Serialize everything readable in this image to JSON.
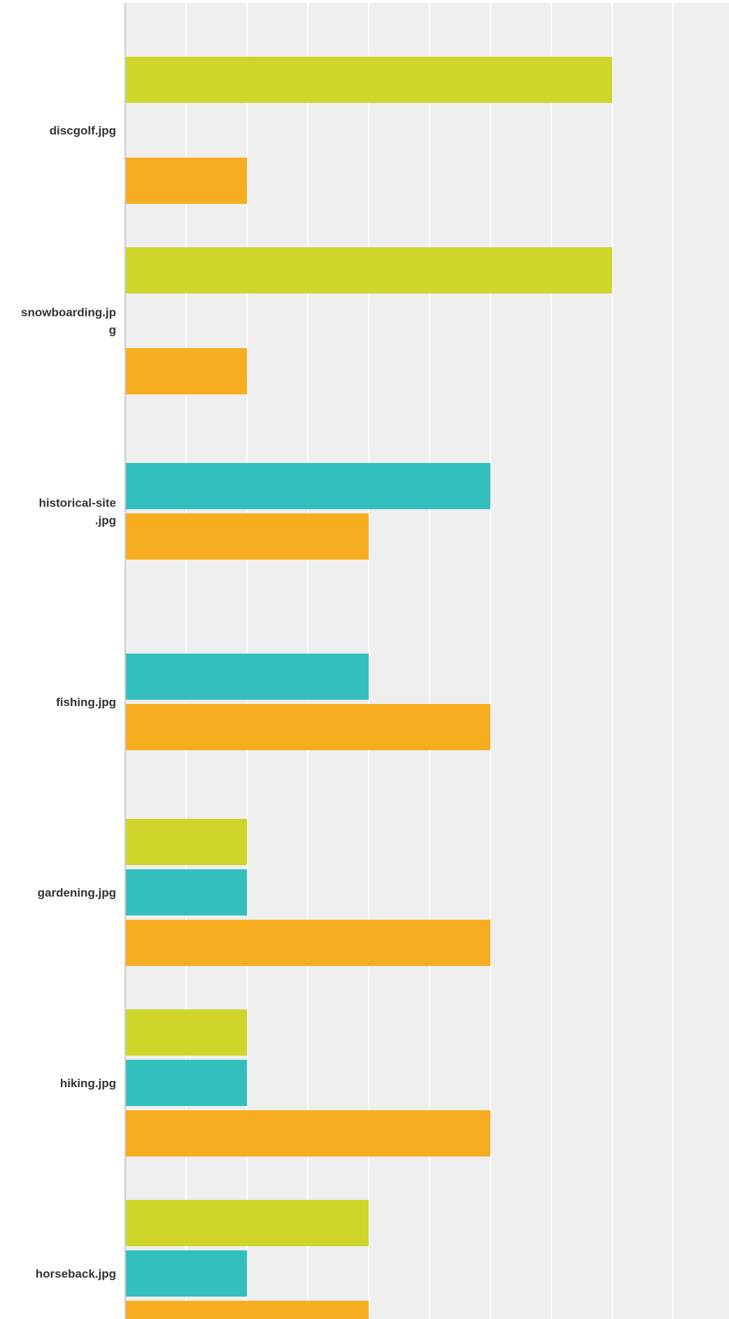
{
  "chart_data": {
    "type": "bar",
    "orientation": "horizontal",
    "grid": true,
    "xlim": [
      0,
      5
    ],
    "categories": [
      {
        "label_lines": [
          "discgolf.jpg"
        ]
      },
      {
        "label_lines": [
          "snowboarding.jp",
          "g"
        ]
      },
      {
        "label_lines": [
          "historical-site",
          ".jpg"
        ]
      },
      {
        "label_lines": [
          "fishing.jpg"
        ]
      },
      {
        "label_lines": [
          "gardening.jpg"
        ]
      },
      {
        "label_lines": [
          "hiking.jpg"
        ]
      },
      {
        "label_lines": [
          "horseback.jpg"
        ]
      }
    ],
    "series": [
      {
        "color": "#cfd52a",
        "values": [
          4,
          4,
          0,
          0,
          1,
          1,
          2
        ]
      },
      {
        "color": "#34bfbf",
        "values": [
          0,
          0,
          3,
          2,
          1,
          1,
          1
        ]
      },
      {
        "color": "#f6ae20",
        "values": [
          1,
          1,
          2,
          3,
          3,
          3,
          2
        ]
      }
    ]
  }
}
